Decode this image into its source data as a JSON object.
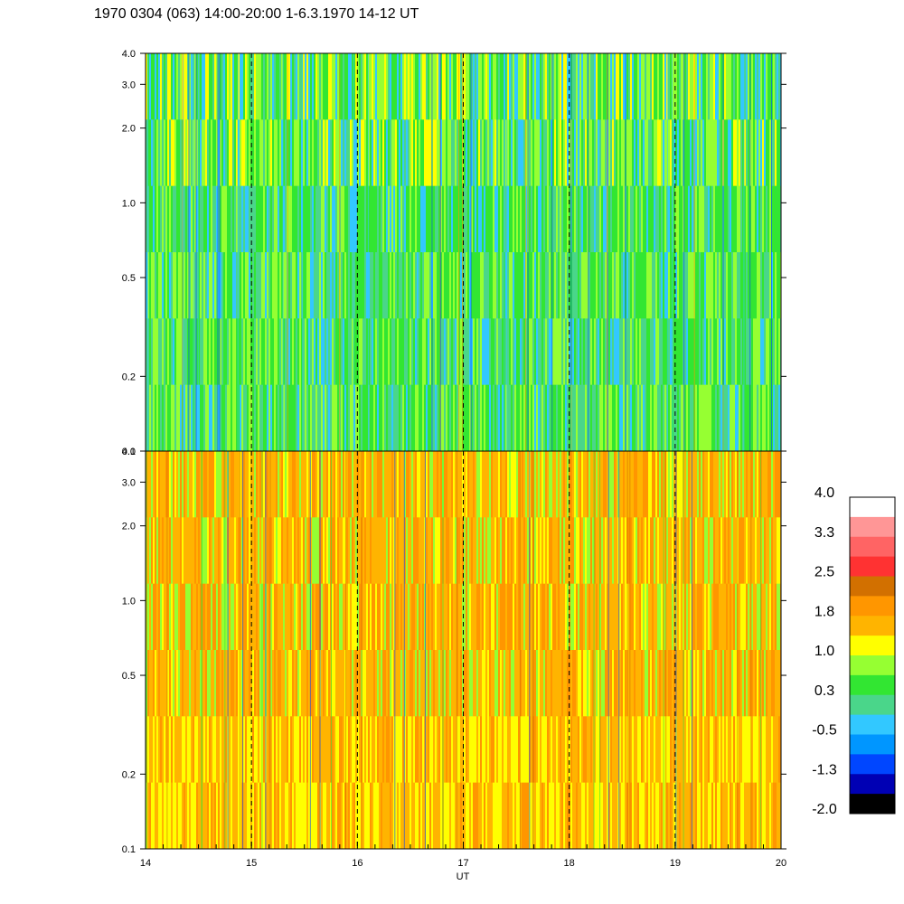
{
  "title": "1970 0304 (063) 14:00-20:00 1-6.3.1970  14-12 UT",
  "chart_data": {
    "type": "heatmap",
    "title": "1970 0304 (063) 14:00-20:00 1-6.3.1970  14-12 UT",
    "xlabel": "UT",
    "x_range": [
      14,
      20
    ],
    "x_ticks": [
      "14",
      "15",
      "16",
      "17",
      "18",
      "19",
      "20"
    ],
    "x_minor_per_major": 6,
    "dashed_verticals": [
      15,
      16,
      17,
      18,
      19
    ],
    "panels": [
      {
        "name": "top",
        "y_scale": "log",
        "y_range": [
          0.1,
          4.0
        ],
        "y_ticks": [
          "0.1",
          "0.2",
          "0.5",
          "1.0",
          "2.0",
          "3.0",
          "4.0"
        ],
        "y_tick_values": [
          0.1,
          0.2,
          0.5,
          1.0,
          2.0,
          3.0,
          4.0
        ],
        "dominant_levels": [
          "green",
          "cyan-green",
          "yellow-green"
        ]
      },
      {
        "name": "bottom",
        "y_scale": "log",
        "y_range": [
          0.1,
          4.0
        ],
        "y_ticks": [
          "0.1",
          "0.2",
          "0.5",
          "1.0",
          "2.0",
          "3.0",
          "4.0"
        ],
        "y_tick_values": [
          0.1,
          0.2,
          0.5,
          1.0,
          2.0,
          3.0,
          4.0
        ],
        "dominant_levels": [
          "orange",
          "amber",
          "yellow"
        ]
      }
    ],
    "colorbar": {
      "labels": [
        "4.0",
        "3.3",
        "2.5",
        "1.8",
        "1.0",
        "0.3",
        "-0.5",
        "-1.3",
        "-2.0"
      ],
      "colors": [
        "#ffffff",
        "#ff9696",
        "#ff6464",
        "#ff3232",
        "#d27000",
        "#ff9600",
        "#ffb400",
        "#ffff00",
        "#96ff32",
        "#32e632",
        "#4ad68a",
        "#32c8ff",
        "#0096ff",
        "#0046ff",
        "#0000b4",
        "#000000"
      ]
    },
    "grid": false
  }
}
